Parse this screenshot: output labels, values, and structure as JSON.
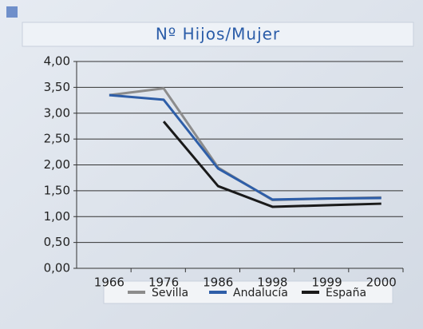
{
  "chart_data": {
    "type": "line",
    "title": "Nº Hijos/Mujer",
    "categories": [
      "1966",
      "1976",
      "1986",
      "1998",
      "1999",
      "2000"
    ],
    "series": [
      {
        "name": "Sevilla",
        "color": "#8c8c8c",
        "values": [
          3.35,
          3.48,
          1.95,
          1.32,
          1.35,
          1.37
        ]
      },
      {
        "name": "Andalucía",
        "color": "#2e5ea8",
        "values": [
          3.35,
          3.26,
          1.93,
          1.33,
          1.35,
          1.36
        ]
      },
      {
        "name": "España",
        "color": "#1a1a1a",
        "values": [
          null,
          2.84,
          1.59,
          1.19,
          1.22,
          1.25
        ]
      }
    ],
    "ylim": [
      0,
      4
    ],
    "yticks": [
      {
        "value": 0,
        "label": "0,00"
      },
      {
        "value": 0.5,
        "label": "0,50"
      },
      {
        "value": 1,
        "label": "1,00"
      },
      {
        "value": 1.5,
        "label": "1,50"
      },
      {
        "value": 2,
        "label": "2,00"
      },
      {
        "value": 2.5,
        "label": "2,50"
      },
      {
        "value": 3,
        "label": "3,00"
      },
      {
        "value": 3.5,
        "label": "3,50"
      },
      {
        "value": 4,
        "label": "4,00"
      }
    ],
    "grid": true,
    "legend": "bottom"
  }
}
